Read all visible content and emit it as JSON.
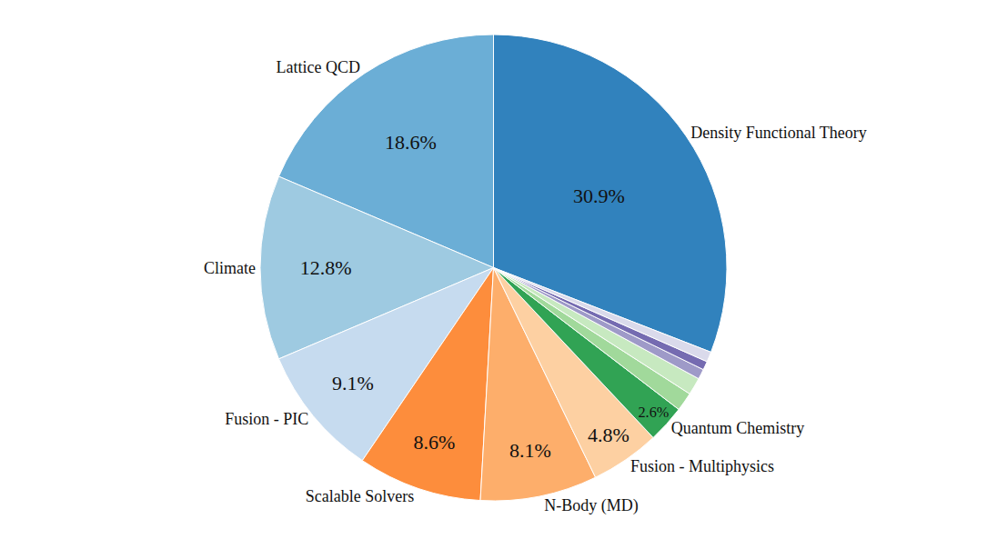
{
  "chart_data": {
    "type": "pie",
    "categories": [
      "Density Functional Theory",
      "Lattice QCD",
      "Climate",
      "Fusion - PIC",
      "Scalable Solvers",
      "N-Body (MD)",
      "Fusion - Multiphysics",
      "Quantum Chemistry",
      null,
      null,
      null,
      null,
      null
    ],
    "values": [
      30.9,
      18.6,
      12.8,
      9.1,
      8.6,
      8.1,
      4.8,
      2.6,
      1.3,
      1.2,
      0.7,
      0.6,
      0.7
    ],
    "value_labels": [
      "30.9%",
      "18.6%",
      "12.8%",
      "9.1%",
      "8.6%",
      "8.1%",
      "4.8%",
      "2.6%",
      null,
      null,
      null,
      null,
      null
    ],
    "colors": [
      "#3182bd",
      "#6baed6",
      "#9ecae1",
      "#c6dbef",
      "#fd8d3c",
      "#fdae6b",
      "#fdd0a2",
      "#31a354",
      "#a1d99b",
      "#c7e9c0",
      "#9e9ac8",
      "#756bb1",
      "#dadaeb"
    ],
    "data_labels": true
  }
}
